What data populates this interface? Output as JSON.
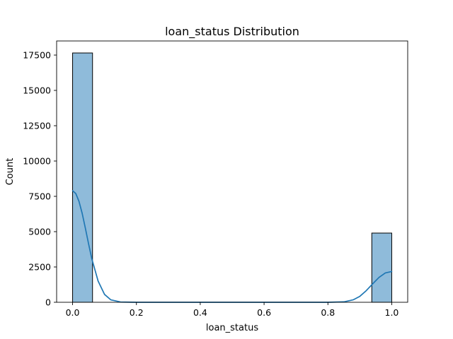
{
  "chart_data": {
    "type": "bar",
    "subtype": "histogram-with-kde",
    "title": "loan_status Distribution",
    "xlabel": "loan_status",
    "ylabel": "Count",
    "xlim": [
      -0.05,
      1.05
    ],
    "ylim": [
      0,
      18500
    ],
    "xticks": [
      0.0,
      0.2,
      0.4,
      0.6,
      0.8,
      1.0
    ],
    "xtick_labels": [
      "0.0",
      "0.2",
      "0.4",
      "0.6",
      "0.8",
      "1.0"
    ],
    "yticks": [
      0,
      2500,
      5000,
      7500,
      10000,
      12500,
      15000,
      17500
    ],
    "ytick_labels": [
      "0",
      "2500",
      "5000",
      "7500",
      "10000",
      "12500",
      "15000",
      "17500"
    ],
    "bins": [
      {
        "x0": 0.0,
        "x1": 0.0625,
        "count": 17650
      },
      {
        "x0": 0.9375,
        "x1": 1.0,
        "count": 4900
      }
    ],
    "kde": {
      "x": [
        0.0,
        0.01,
        0.02,
        0.03,
        0.04,
        0.05,
        0.06,
        0.08,
        0.1,
        0.12,
        0.15,
        0.2,
        0.3,
        0.5,
        0.7,
        0.8,
        0.85,
        0.88,
        0.9,
        0.92,
        0.94,
        0.96,
        0.98,
        1.0
      ],
      "y": [
        7900,
        7700,
        7150,
        6300,
        5250,
        4150,
        3100,
        1500,
        560,
        170,
        20,
        0,
        0,
        0,
        0,
        0,
        30,
        180,
        420,
        820,
        1300,
        1760,
        2080,
        2180
      ]
    },
    "colors": {
      "bar_fill": "#8fbbda",
      "bar_edge": "#000000",
      "kde_line": "#1f77b4"
    },
    "grid": false,
    "legend": "none"
  }
}
